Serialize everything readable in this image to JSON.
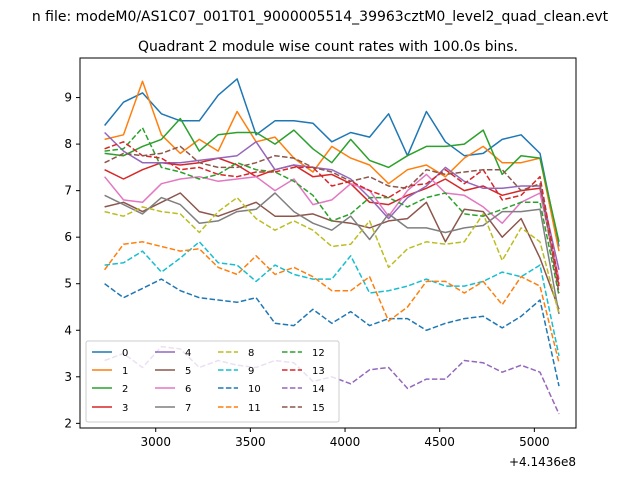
{
  "figure": {
    "suptitle": "n file: modeM0/AS1C07_001T01_9000005514_39963cztM0_level2_quad_clean.evt",
    "title": "Quadrant 2 module wise count rates with 100.0s bins.",
    "x_offset_label": "+4.1436e8"
  },
  "chart_data": {
    "type": "line",
    "title": "Quadrant 2 module wise count rates with 100.0s bins.",
    "xlabel": "",
    "ylabel": "",
    "xlim": [
      2600,
      5220
    ],
    "ylim": [
      1.9,
      9.85
    ],
    "x_offset": "+4.1436e8",
    "xticks": [
      3000,
      3500,
      4000,
      4500,
      5000
    ],
    "yticks": [
      2,
      3,
      4,
      5,
      6,
      7,
      8,
      9
    ],
    "grid": false,
    "legend_position": "lower-left",
    "x": [
      2730,
      2830,
      2930,
      3030,
      3130,
      3230,
      3330,
      3430,
      3530,
      3630,
      3730,
      3830,
      3930,
      4030,
      4130,
      4230,
      4330,
      4430,
      4530,
      4630,
      4730,
      4830,
      4930,
      5030,
      5130
    ],
    "series": [
      {
        "name": "0",
        "color": "#1f77b4",
        "dash": "solid",
        "values": [
          8.4,
          8.9,
          9.1,
          8.65,
          8.5,
          8.5,
          9.05,
          9.4,
          8.2,
          8.5,
          8.5,
          8.45,
          8.05,
          8.25,
          8.15,
          8.65,
          7.75,
          8.7,
          8.05,
          7.75,
          7.8,
          8.1,
          8.2,
          7.8,
          5.8
        ]
      },
      {
        "name": "1",
        "color": "#ff7f0e",
        "dash": "solid",
        "values": [
          8.1,
          8.2,
          9.35,
          8.2,
          7.8,
          8.1,
          7.85,
          8.7,
          8.05,
          8.15,
          7.7,
          7.4,
          7.95,
          7.7,
          7.55,
          7.15,
          7.45,
          7.55,
          7.3,
          7.7,
          7.95,
          7.6,
          7.6,
          7.7,
          5.7
        ]
      },
      {
        "name": "2",
        "color": "#2ca02c",
        "dash": "solid",
        "values": [
          7.8,
          7.75,
          7.95,
          8.1,
          8.55,
          7.85,
          8.2,
          8.25,
          8.25,
          8.0,
          8.3,
          7.9,
          7.6,
          8.1,
          7.65,
          7.5,
          7.75,
          7.95,
          7.95,
          8.0,
          8.3,
          7.35,
          7.75,
          7.7,
          5.9
        ]
      },
      {
        "name": "3",
        "color": "#d62728",
        "dash": "solid",
        "values": [
          7.45,
          7.25,
          7.45,
          7.6,
          7.55,
          7.6,
          7.7,
          7.55,
          7.3,
          7.45,
          7.55,
          7.3,
          7.35,
          7.15,
          6.75,
          6.7,
          6.9,
          7.05,
          7.25,
          7.0,
          7.1,
          6.9,
          7.0,
          7.05,
          4.95
        ]
      },
      {
        "name": "4",
        "color": "#9467bd",
        "dash": "solid",
        "values": [
          8.25,
          7.85,
          7.6,
          7.6,
          7.6,
          7.65,
          7.7,
          7.75,
          8.05,
          7.45,
          7.55,
          7.5,
          7.45,
          7.25,
          6.85,
          6.4,
          6.85,
          7.1,
          7.5,
          7.2,
          7.05,
          7.05,
          7.1,
          7.1,
          5.3
        ]
      },
      {
        "name": "5",
        "color": "#8c564b",
        "dash": "solid",
        "values": [
          6.65,
          6.75,
          6.55,
          6.75,
          6.95,
          6.55,
          6.45,
          6.6,
          6.75,
          6.45,
          6.45,
          6.5,
          6.35,
          6.3,
          6.2,
          6.35,
          6.4,
          6.75,
          5.9,
          6.6,
          6.55,
          6.0,
          6.4,
          5.55,
          4.45
        ]
      },
      {
        "name": "6",
        "color": "#e377c2",
        "dash": "solid",
        "values": [
          7.3,
          6.8,
          6.75,
          7.15,
          7.25,
          7.3,
          7.2,
          7.25,
          7.3,
          7.0,
          7.25,
          6.7,
          6.8,
          7.15,
          7.0,
          6.45,
          7.0,
          7.35,
          6.95,
          6.9,
          6.65,
          6.3,
          6.75,
          6.95,
          5.1
        ]
      },
      {
        "name": "7",
        "color": "#7f7f7f",
        "dash": "solid",
        "values": [
          6.9,
          6.7,
          6.5,
          6.85,
          6.7,
          6.3,
          6.35,
          6.55,
          6.6,
          6.95,
          6.55,
          6.3,
          6.15,
          6.45,
          5.95,
          6.5,
          6.2,
          6.2,
          6.1,
          6.2,
          6.25,
          6.55,
          6.55,
          6.6,
          4.35
        ]
      },
      {
        "name": "8",
        "color": "#bcbd22",
        "dash": "dashed",
        "values": [
          6.55,
          6.45,
          6.65,
          6.55,
          6.5,
          6.1,
          6.55,
          6.85,
          6.4,
          6.15,
          6.35,
          6.15,
          5.8,
          5.85,
          6.35,
          5.35,
          5.75,
          5.9,
          5.85,
          5.9,
          6.5,
          5.5,
          6.2,
          5.9,
          4.35
        ]
      },
      {
        "name": "9",
        "color": "#17becf",
        "dash": "dashed",
        "values": [
          5.4,
          5.45,
          5.7,
          5.25,
          5.55,
          5.9,
          5.45,
          5.4,
          5.05,
          5.4,
          5.2,
          5.1,
          5.1,
          5.6,
          4.8,
          4.85,
          4.95,
          5.1,
          4.95,
          4.95,
          5.05,
          5.25,
          5.15,
          5.4,
          3.45
        ]
      },
      {
        "name": "10",
        "color": "#1f77b4",
        "dash": "dashed",
        "values": [
          5.0,
          4.7,
          4.9,
          5.1,
          4.85,
          4.7,
          4.65,
          4.6,
          4.7,
          4.15,
          4.1,
          4.45,
          4.15,
          4.4,
          4.1,
          4.25,
          4.25,
          4.0,
          4.15,
          4.25,
          4.3,
          4.05,
          4.3,
          4.65,
          2.8
        ]
      },
      {
        "name": "11",
        "color": "#ff7f0e",
        "dash": "dashed",
        "values": [
          5.3,
          5.85,
          5.9,
          5.8,
          5.7,
          5.75,
          5.35,
          5.2,
          5.6,
          5.2,
          5.35,
          5.15,
          4.85,
          4.85,
          5.15,
          4.2,
          4.5,
          5.05,
          5.05,
          4.8,
          5.05,
          4.55,
          5.15,
          4.95,
          3.3
        ]
      },
      {
        "name": "12",
        "color": "#2ca02c",
        "dash": "dashed",
        "values": [
          7.85,
          7.9,
          8.35,
          7.5,
          7.4,
          7.25,
          7.35,
          7.6,
          7.45,
          7.4,
          7.2,
          6.9,
          6.35,
          6.5,
          6.85,
          6.85,
          6.65,
          6.85,
          6.95,
          6.5,
          6.45,
          6.6,
          6.75,
          6.75,
          4.75
        ]
      },
      {
        "name": "13",
        "color": "#d62728",
        "dash": "dashed",
        "values": [
          7.9,
          8.05,
          7.75,
          7.7,
          7.45,
          7.5,
          7.35,
          7.3,
          7.4,
          7.4,
          7.5,
          7.5,
          7.1,
          7.2,
          7.0,
          6.85,
          7.1,
          7.15,
          7.45,
          7.15,
          7.45,
          6.8,
          6.9,
          7.3,
          5.0
        ]
      },
      {
        "name": "14",
        "color": "#9467bd",
        "dash": "dashed",
        "values": [
          3.35,
          3.5,
          3.2,
          3.65,
          3.6,
          3.2,
          3.35,
          3.25,
          3.2,
          3.35,
          3.3,
          2.9,
          3.0,
          2.85,
          3.15,
          3.2,
          2.75,
          2.95,
          2.95,
          3.35,
          3.3,
          3.1,
          3.25,
          3.1,
          2.2
        ]
      },
      {
        "name": "15",
        "color": "#8c564b",
        "dash": "dashed",
        "values": [
          7.6,
          7.8,
          7.75,
          7.8,
          7.95,
          7.6,
          7.5,
          7.5,
          7.6,
          7.75,
          7.7,
          7.5,
          7.4,
          7.2,
          7.3,
          7.1,
          7.05,
          7.45,
          7.35,
          7.4,
          7.45,
          7.45,
          7.0,
          7.15,
          4.8
        ]
      }
    ]
  }
}
